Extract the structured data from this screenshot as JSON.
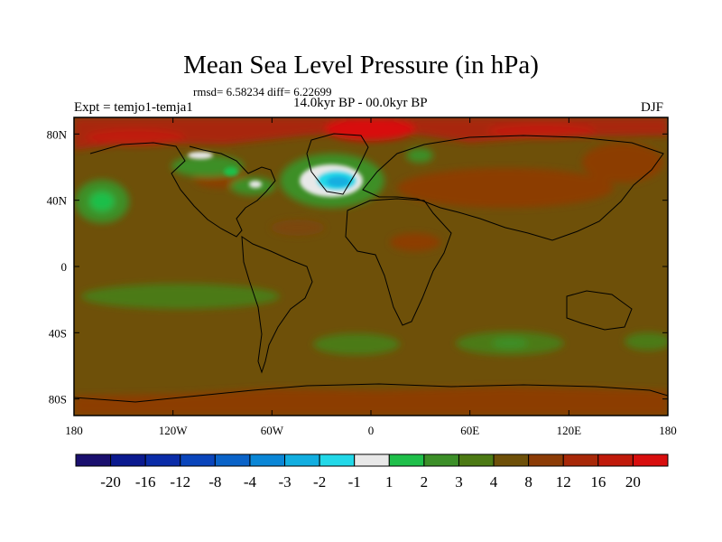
{
  "figure": {
    "title": "Mean Sea Level Pressure (in hPa)",
    "stats": "rmsd= 6.58234 diff= 6.22699",
    "period": "14.0kyr BP - 00.0kyr BP",
    "experiment": "Expt = temjo1-temja1",
    "season": "DJF"
  },
  "map": {
    "lat_range": [
      -90,
      90
    ],
    "lon_range": [
      -180,
      180
    ],
    "y_tick_labels": [
      "80N",
      "40N",
      "0",
      "40S",
      "80S"
    ],
    "x_tick_labels": [
      "180",
      "120W",
      "60W",
      "0",
      "60E",
      "120E",
      "180"
    ],
    "background_color": "#6e5009"
  },
  "chart_data": {
    "type": "heatmap",
    "title": "Mean Sea Level Pressure (in hPa)",
    "colorbar": {
      "labels": [
        "-20",
        "-16",
        "-12",
        "-8",
        "-4",
        "-3",
        "-2",
        "-1",
        "1",
        "2",
        "3",
        "4",
        "8",
        "12",
        "16",
        "20"
      ],
      "colors": [
        "#1a0f6e",
        "#0b1a8f",
        "#0a2ca8",
        "#0a45bb",
        "#0a63c8",
        "#0a86d6",
        "#12aee0",
        "#22d8e8",
        "#e8e8e8",
        "#1fbf4a",
        "#3c8f28",
        "#4c7a14",
        "#6e5009",
        "#8c3c06",
        "#a82808",
        "#c01a0a",
        "#d80e0e"
      ]
    }
  }
}
